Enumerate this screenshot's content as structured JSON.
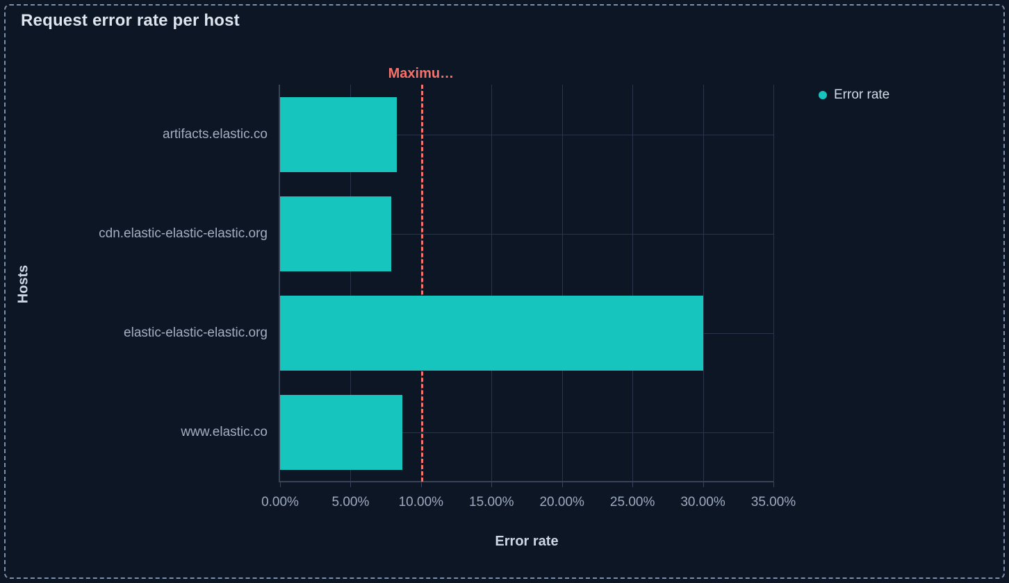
{
  "panel": {
    "title": "Request error rate per host"
  },
  "legend": {
    "position": "right",
    "items": [
      {
        "label": "Error rate",
        "swatch": "circle",
        "color": "#17c5bf"
      }
    ]
  },
  "chart_data": {
    "type": "bar",
    "orientation": "horizontal",
    "title": "Request error rate per host",
    "xlabel": "Error rate",
    "ylabel": "Hosts",
    "categories": [
      "artifacts.elastic.co",
      "cdn.elastic-elastic-elastic.org",
      "elastic-elastic-elastic.org",
      "www.elastic.co"
    ],
    "series": [
      {
        "name": "Error rate",
        "color": "#17c5bf",
        "values": [
          8.3,
          7.9,
          30.0,
          8.7
        ]
      }
    ],
    "value_unit": "percent",
    "xlim": [
      0,
      35
    ],
    "x_tick_values": [
      0,
      5,
      10,
      15,
      20,
      25,
      30,
      35
    ],
    "x_tick_labels": [
      "0.00%",
      "5.00%",
      "10.00%",
      "15.00%",
      "20.00%",
      "25.00%",
      "30.00%",
      "35.00%"
    ],
    "grid": true,
    "legend_position": "right",
    "threshold": {
      "label": "Maximu…",
      "value": 10,
      "color": "#f6726a",
      "style": "dashed"
    }
  },
  "colors": {
    "background": "#0d1625",
    "panel_border": "#7d90ac",
    "title": "#dfe5ef",
    "bar": "#17c5bf",
    "threshold": "#f6726a",
    "grid": "#2a344a",
    "axis": "#3a4459",
    "tick_label": "#9eaabf",
    "category_label": "#a3aec2",
    "axis_title": "#ccd6e4",
    "legend_text": "#d3dae6"
  }
}
